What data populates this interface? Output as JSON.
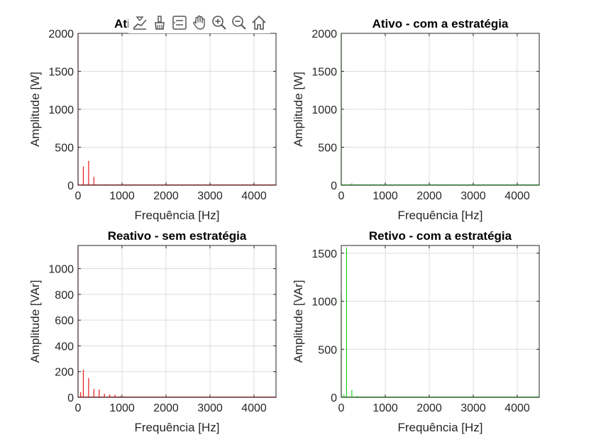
{
  "toolbar": {
    "icons": [
      "data-tips-icon",
      "brush-icon",
      "legend-icon",
      "pan-hand-icon",
      "zoom-in-icon",
      "zoom-out-icon",
      "home-icon"
    ]
  },
  "colors": {
    "series_red": "#e8191b",
    "series_green": "#22c922"
  },
  "chart_data": [
    {
      "type": "line",
      "title": "Ativo - sem estratégia",
      "xlabel": "Frequência [Hz]",
      "ylabel": "Amplitude [W]",
      "xlim": [
        0,
        4500
      ],
      "ylim": [
        0,
        2000
      ],
      "xticks": [
        0,
        1000,
        2000,
        3000,
        4000
      ],
      "yticks": [
        0,
        500,
        1000,
        1500,
        2000
      ],
      "grid": true,
      "color": "#e8191b",
      "stems": [
        [
          0,
          2000
        ],
        [
          120,
          245
        ],
        [
          240,
          320
        ],
        [
          360,
          110
        ],
        [
          480,
          10
        ],
        [
          600,
          6
        ],
        [
          720,
          5
        ],
        [
          840,
          3
        ]
      ]
    },
    {
      "type": "line",
      "title": "Ativo - com a estratégia",
      "xlabel": "Frequência [Hz]",
      "ylabel": "Amplitude [W]",
      "xlim": [
        0,
        4500
      ],
      "ylim": [
        0,
        2000
      ],
      "xticks": [
        0,
        1000,
        2000,
        3000,
        4000
      ],
      "yticks": [
        0,
        500,
        1000,
        1500,
        2000
      ],
      "grid": true,
      "color": "#22c922",
      "stems": [
        [
          0,
          2000
        ],
        [
          120,
          8
        ],
        [
          240,
          25
        ],
        [
          360,
          6
        ],
        [
          480,
          4
        ],
        [
          600,
          3
        ]
      ]
    },
    {
      "type": "line",
      "title": "Reativo - sem estratégia",
      "xlabel": "Frequência [Hz]",
      "ylabel": "Amplitude [VAr]",
      "xlim": [
        0,
        4500
      ],
      "ylim": [
        0,
        1180
      ],
      "xticks": [
        0,
        1000,
        2000,
        3000,
        4000
      ],
      "yticks": [
        0,
        200,
        400,
        600,
        800,
        1000
      ],
      "grid": true,
      "color": "#e8191b",
      "stems": [
        [
          0,
          1180
        ],
        [
          60,
          40
        ],
        [
          120,
          215
        ],
        [
          240,
          150
        ],
        [
          360,
          65
        ],
        [
          480,
          60
        ],
        [
          600,
          28
        ],
        [
          720,
          22
        ],
        [
          840,
          20
        ],
        [
          960,
          10
        ],
        [
          1080,
          6
        ],
        [
          1200,
          4
        ]
      ]
    },
    {
      "type": "line",
      "title": "Retivo - com a estratégia",
      "xlabel": "Frequência [Hz]",
      "ylabel": "Amplitude [VAr]",
      "xlim": [
        0,
        4500
      ],
      "ylim": [
        0,
        1580
      ],
      "xticks": [
        0,
        1000,
        2000,
        3000,
        4000
      ],
      "yticks": [
        0,
        500,
        1000,
        1500
      ],
      "grid": true,
      "color": "#22c922",
      "stems": [
        [
          0,
          1080
        ],
        [
          60,
          30
        ],
        [
          120,
          1560
        ],
        [
          240,
          75
        ],
        [
          360,
          15
        ],
        [
          480,
          8
        ],
        [
          600,
          6
        ]
      ]
    }
  ]
}
